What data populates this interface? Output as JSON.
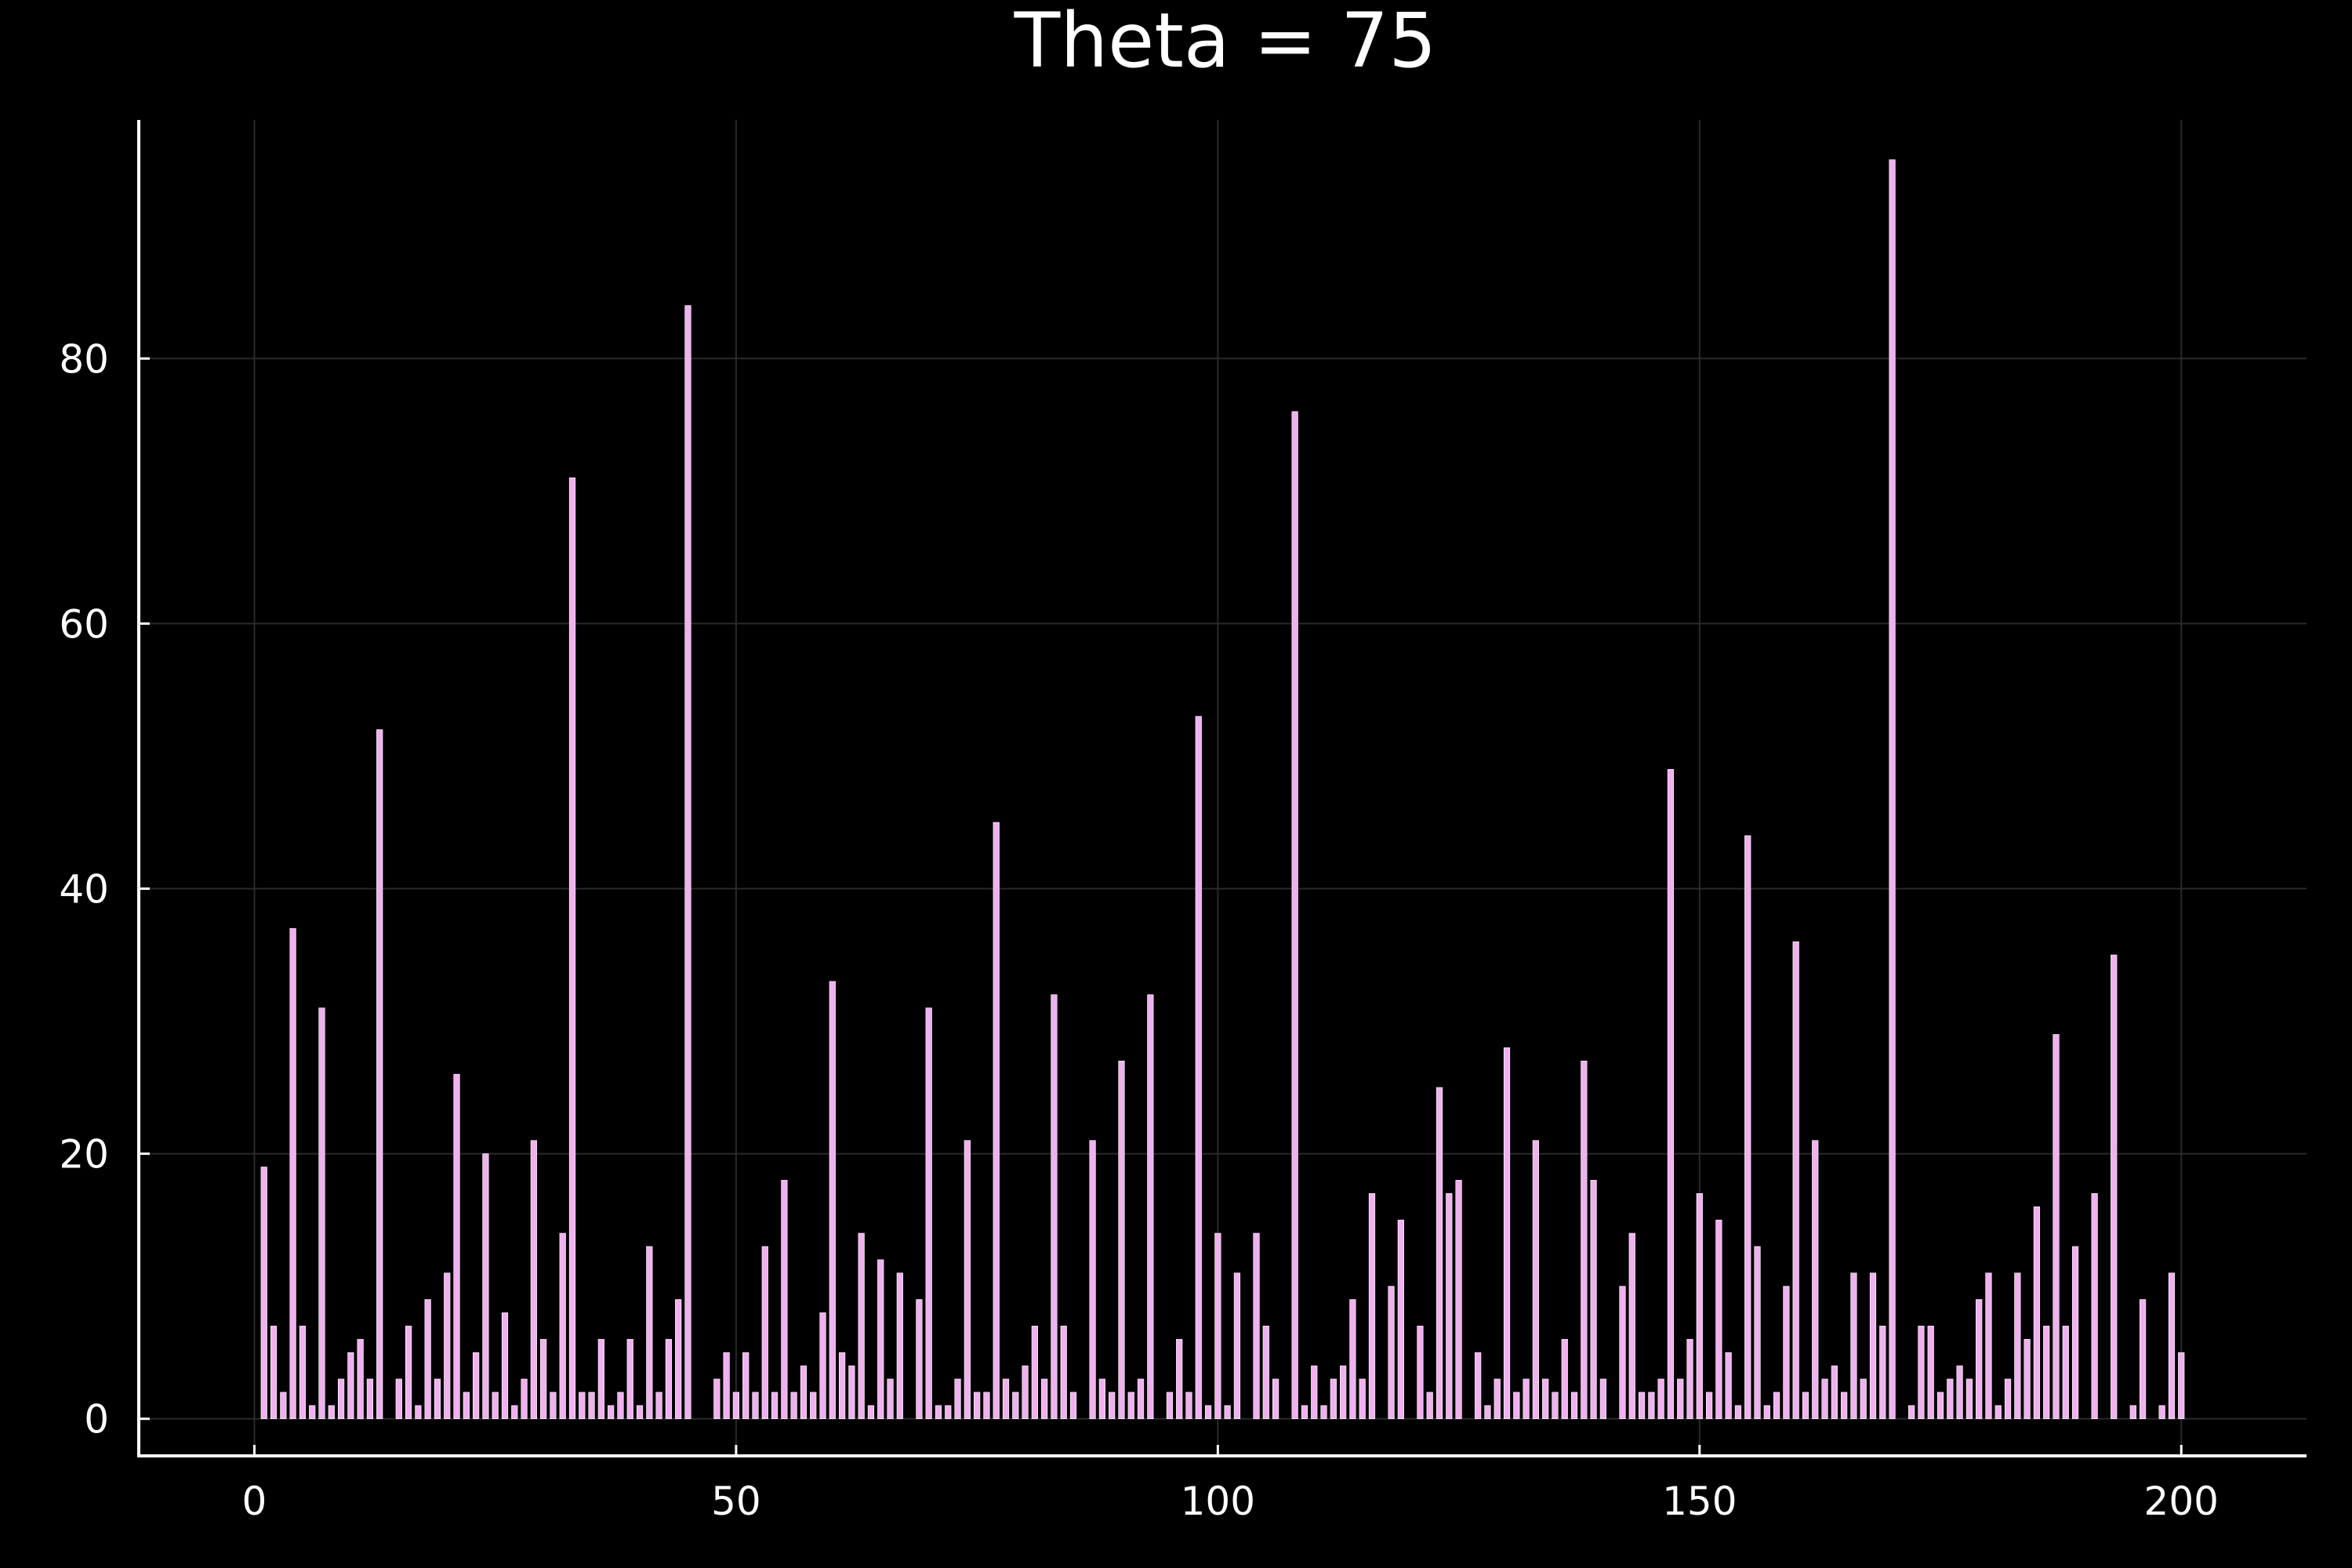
{
  "chart_data": {
    "type": "bar",
    "title": "Theta = 75",
    "xlabel": "",
    "ylabel": "",
    "xlim": [
      -12,
      213
    ],
    "ylim": [
      -2.8,
      98
    ],
    "xticks": [
      0,
      50,
      100,
      150,
      200
    ],
    "yticks": [
      0,
      20,
      40,
      60,
      80
    ],
    "grid": true,
    "legend": "none",
    "bar_color": "#f0b1ef",
    "background": "#000000",
    "x": [
      1,
      2,
      3,
      4,
      5,
      6,
      7,
      8,
      9,
      10,
      11,
      12,
      13,
      14,
      15,
      16,
      17,
      18,
      19,
      20,
      21,
      22,
      23,
      24,
      25,
      26,
      27,
      28,
      29,
      30,
      31,
      32,
      33,
      34,
      35,
      36,
      37,
      38,
      39,
      40,
      41,
      42,
      43,
      44,
      45,
      46,
      47,
      48,
      49,
      50,
      51,
      52,
      53,
      54,
      55,
      56,
      57,
      58,
      59,
      60,
      61,
      62,
      63,
      64,
      65,
      66,
      67,
      68,
      69,
      70,
      71,
      72,
      73,
      74,
      75,
      76,
      77,
      78,
      79,
      80,
      81,
      82,
      83,
      84,
      85,
      86,
      87,
      88,
      89,
      90,
      91,
      92,
      93,
      94,
      95,
      96,
      97,
      98,
      99,
      100,
      101,
      102,
      103,
      104,
      105,
      106,
      107,
      108,
      109,
      110,
      111,
      112,
      113,
      114,
      115,
      116,
      117,
      118,
      119,
      120,
      121,
      122,
      123,
      124,
      125,
      126,
      127,
      128,
      129,
      130,
      131,
      132,
      133,
      134,
      135,
      136,
      137,
      138,
      139,
      140,
      141,
      142,
      143,
      144,
      145,
      146,
      147,
      148,
      149,
      150,
      151,
      152,
      153,
      154,
      155,
      156,
      157,
      158,
      159,
      160,
      161,
      162,
      163,
      164,
      165,
      166,
      167,
      168,
      169,
      170,
      171,
      172,
      173,
      174,
      175,
      176,
      177,
      178,
      179,
      180,
      181,
      182,
      183,
      184,
      185,
      186,
      187,
      188,
      189,
      190,
      191,
      192,
      193,
      194,
      195,
      196,
      197,
      198,
      199,
      200
    ],
    "values": [
      19,
      7,
      2,
      37,
      7,
      1,
      31,
      1,
      3,
      5,
      6,
      3,
      52,
      0,
      3,
      7,
      1,
      9,
      3,
      11,
      26,
      2,
      5,
      20,
      2,
      8,
      1,
      3,
      21,
      6,
      2,
      14,
      71,
      2,
      2,
      6,
      1,
      2,
      6,
      1,
      13,
      2,
      6,
      9,
      84,
      0,
      0,
      3,
      5,
      2,
      5,
      2,
      13,
      2,
      18,
      2,
      4,
      2,
      8,
      33,
      5,
      4,
      14,
      1,
      12,
      3,
      11,
      0,
      9,
      31,
      1,
      1,
      3,
      21,
      2,
      2,
      45,
      3,
      2,
      4,
      7,
      3,
      32,
      7,
      2,
      0,
      21,
      3,
      2,
      27,
      2,
      3,
      32,
      0,
      2,
      6,
      2,
      53,
      1,
      14,
      1,
      11,
      0,
      14,
      7,
      3,
      0,
      76,
      1,
      4,
      1,
      3,
      4,
      9,
      3,
      17,
      0,
      10,
      15,
      0,
      7,
      2,
      25,
      17,
      18,
      0,
      5,
      1,
      3,
      28,
      2,
      3,
      21,
      3,
      2,
      6,
      2,
      27,
      18,
      3,
      0,
      10,
      14,
      2,
      2,
      3,
      49,
      3,
      6,
      17,
      2,
      15,
      5,
      1,
      44,
      13,
      1,
      2,
      10,
      36,
      2,
      21,
      3,
      4,
      2,
      11,
      3,
      11,
      7,
      95,
      0,
      1,
      7,
      7,
      2,
      3,
      4,
      3,
      9,
      11,
      1,
      3,
      11,
      6,
      16,
      7,
      29,
      7,
      13,
      0,
      17,
      0,
      35,
      0,
      1,
      9,
      0,
      1,
      11,
      5
    ]
  }
}
